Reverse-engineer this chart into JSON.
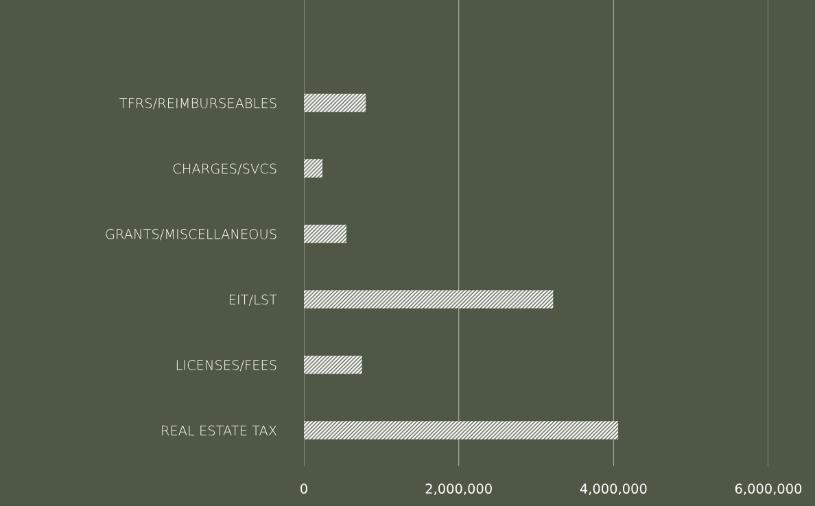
{
  "chart_data": {
    "type": "bar",
    "orientation": "horizontal",
    "categories": [
      "TFRS/REIMBURSEABLES",
      "CHARGES/SVCS",
      "GRANTS/MISCELLANEOUS",
      "EIT/LST",
      "LICENSES/FEES",
      "REAL ESTATE TAX"
    ],
    "values": [
      800000,
      240000,
      550000,
      3220000,
      750000,
      4060000
    ],
    "color": "#ffffff",
    "xlim": [
      0,
      6000000
    ],
    "xticks": [
      {
        "value": 0,
        "label": "0"
      },
      {
        "value": 2000000,
        "label": "2,000,000"
      },
      {
        "value": 4000000,
        "label": "4,000,000"
      },
      {
        "value": 6000000,
        "label": "6,000,000"
      }
    ],
    "grid": "x"
  }
}
